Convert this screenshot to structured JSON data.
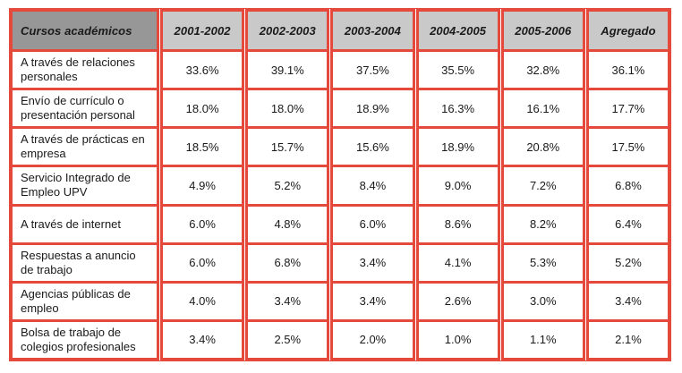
{
  "page": {
    "background": "#FFFFFF"
  },
  "chart_data": {
    "type": "table",
    "header_label": "Cursos académicos",
    "columns": [
      "2001-2002",
      "2002-2003",
      "2003-2004",
      "2004-2005",
      "2005-2006",
      "Agregado"
    ],
    "rows": [
      {
        "label": "A través de relaciones personales",
        "values": [
          "33.6%",
          "39.1%",
          "37.5%",
          "35.5%",
          "32.8%",
          "36.1%"
        ]
      },
      {
        "label": "Envío de currículo o presentación personal",
        "values": [
          "18.0%",
          "18.0%",
          "18.9%",
          "16.3%",
          "16.1%",
          "17.7%"
        ]
      },
      {
        "label": "A través de prácticas en empresa",
        "values": [
          "18.5%",
          "15.7%",
          "15.6%",
          "18.9%",
          "20.8%",
          "17.5%"
        ]
      },
      {
        "label": "Servicio Integrado de Empleo UPV",
        "values": [
          "4.9%",
          "5.2%",
          "8.4%",
          "9.0%",
          "7.2%",
          "6.8%"
        ]
      },
      {
        "label": "A través de internet",
        "values": [
          "6.0%",
          "4.8%",
          "6.0%",
          "8.6%",
          "8.2%",
          "6.4%"
        ]
      },
      {
        "label": "Respuestas a anuncio de trabajo",
        "values": [
          "6.0%",
          "6.8%",
          "3.4%",
          "4.1%",
          "5.3%",
          "5.2%"
        ]
      },
      {
        "label": "Agencias públicas de empleo",
        "values": [
          "4.0%",
          "3.4%",
          "3.4%",
          "2.6%",
          "3.0%",
          "3.4%"
        ]
      },
      {
        "label": "Bolsa de trabajo de colegios profesionales",
        "values": [
          "3.4%",
          "2.5%",
          "2.0%",
          "1.0%",
          "1.1%",
          "2.1%"
        ]
      }
    ],
    "colors": {
      "border": "#E4493B",
      "header_label_bg": "#979797",
      "header_year_bg": "#C9C9C9",
      "cell_bg": "#FFFFFF",
      "text": "#1A1A1A"
    }
  }
}
